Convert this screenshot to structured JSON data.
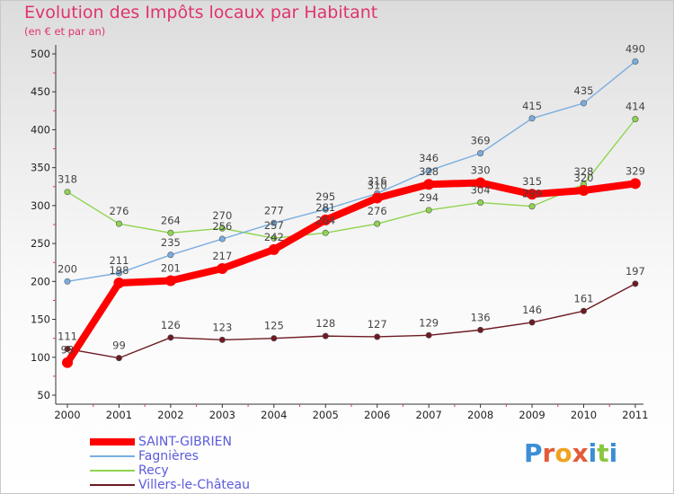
{
  "title": "Evolution des Impôts locaux par Habitant",
  "subtitle": "(en € et par an)",
  "logo": {
    "letters": [
      "P",
      "r",
      "o",
      "x",
      "i",
      "t",
      "i"
    ],
    "colors": [
      "#3b8fd4",
      "#e35b3a",
      "#f0a21f",
      "#e35b3a",
      "#3b8fd4",
      "#8ac640",
      "#3b8fd4"
    ]
  },
  "chart_data": {
    "type": "line",
    "title": "Evolution des Impôts locaux par Habitant",
    "subtitle": "(en € et par an)",
    "xlabel": "",
    "ylabel": "",
    "x": [
      "2000",
      "2001",
      "2002",
      "2003",
      "2004",
      "2005",
      "2006",
      "2007",
      "2008",
      "2009",
      "2010",
      "2011"
    ],
    "yticks": [
      50,
      100,
      150,
      200,
      250,
      300,
      350,
      400,
      450,
      500
    ],
    "ylim": [
      50,
      500
    ],
    "grid": false,
    "legend_position": "bottom-left",
    "series": [
      {
        "name": "Villers-le-Château",
        "color": "#6e1a22",
        "values": [
          111,
          99,
          126,
          123,
          125,
          128,
          127,
          129,
          136,
          146,
          161,
          197
        ]
      },
      {
        "name": "Recy",
        "color": "#8fd44f",
        "values": [
          318,
          276,
          264,
          270,
          257,
          264,
          276,
          294,
          304,
          299,
          328,
          414
        ]
      },
      {
        "name": "Fagnières",
        "color": "#7aaee0",
        "values": [
          200,
          211,
          235,
          256,
          277,
          295,
          316,
          346,
          369,
          415,
          435,
          490
        ]
      },
      {
        "name": "SAINT-GIBRIEN",
        "color": "#ff0000",
        "values": [
          93,
          198,
          201,
          217,
          242,
          281,
          310,
          328,
          330,
          315,
          320,
          329
        ]
      }
    ],
    "value_labels": {
      "Villers-le-Château": [
        "111",
        "99",
        "126",
        "123",
        "125",
        "128",
        "127",
        "129",
        "136",
        "146",
        "161",
        "197"
      ],
      "Recy": [
        "318",
        "276",
        "264",
        "270",
        "257",
        "264",
        "276",
        "294",
        "304",
        "299",
        "328",
        "414"
      ],
      "Fagnières": [
        "200",
        "211",
        "235",
        "256",
        "277",
        "295",
        "316",
        "346",
        "369",
        "415",
        "435",
        "490"
      ],
      "SAINT-GIBRIEN": [
        "93",
        "198",
        "201",
        "217",
        "242",
        "281",
        "310",
        "328",
        "330",
        "315",
        "320",
        "329"
      ]
    }
  },
  "legend": [
    {
      "label": "SAINT-GIBRIEN",
      "color": "#ff0000",
      "style": "thick"
    },
    {
      "label": "Fagnières",
      "color": "#7aaee0",
      "style": "thin"
    },
    {
      "label": "Recy",
      "color": "#8fd44f",
      "style": "thin"
    },
    {
      "label": "Villers-le-Château",
      "color": "#6e1a22",
      "style": "thin"
    }
  ]
}
